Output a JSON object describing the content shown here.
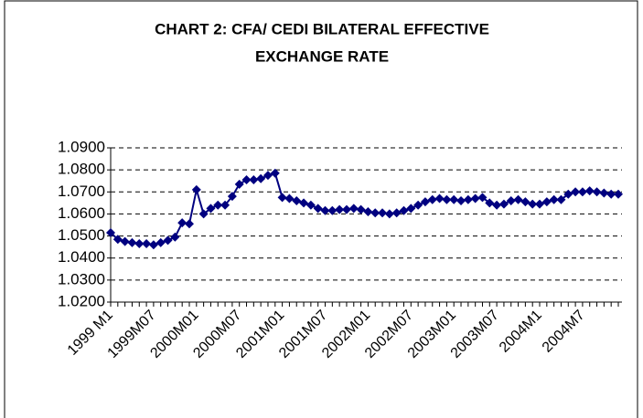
{
  "chart_data": {
    "type": "line",
    "title": [
      "CHART 2: CFA/ CEDI BILATERAL EFFECTIVE",
      "EXCHANGE RATE"
    ],
    "categories": [
      "1999 M1",
      null,
      null,
      null,
      null,
      null,
      "1999M07",
      null,
      null,
      null,
      null,
      null,
      "2000M01",
      null,
      null,
      null,
      null,
      null,
      "2000M07",
      null,
      null,
      null,
      null,
      null,
      "2001M01",
      null,
      null,
      null,
      null,
      null,
      "2001M07",
      null,
      null,
      null,
      null,
      null,
      "2002M01",
      null,
      null,
      null,
      null,
      null,
      "2002M07",
      null,
      null,
      null,
      null,
      null,
      "2003M01",
      null,
      null,
      null,
      null,
      null,
      "2003M07",
      null,
      null,
      null,
      null,
      null,
      "2004M1",
      null,
      null,
      null,
      null,
      null,
      "2004M7",
      null,
      null,
      null,
      null,
      null
    ],
    "values": [
      1.0515,
      1.0485,
      1.0475,
      1.047,
      1.0465,
      1.0465,
      1.046,
      1.047,
      1.048,
      1.0495,
      1.056,
      1.0555,
      1.071,
      1.06,
      1.0625,
      1.064,
      1.064,
      1.068,
      1.0735,
      1.0755,
      1.0755,
      1.076,
      1.0775,
      1.0785,
      1.0675,
      1.067,
      1.066,
      1.065,
      1.064,
      1.0625,
      1.0615,
      1.0615,
      1.062,
      1.062,
      1.0625,
      1.062,
      1.061,
      1.0605,
      1.0605,
      1.06,
      1.0605,
      1.0615,
      1.0625,
      1.064,
      1.0655,
      1.0665,
      1.067,
      1.0665,
      1.0665,
      1.066,
      1.0665,
      1.067,
      1.0675,
      1.065,
      1.064,
      1.0645,
      1.066,
      1.0665,
      1.0655,
      1.0645,
      1.0645,
      1.0655,
      1.0665,
      1.0665,
      1.069,
      1.07,
      1.07,
      1.0705,
      1.07,
      1.0695,
      1.069,
      1.069
    ],
    "color": "#000080",
    "ylim": [
      1.02,
      1.09
    ],
    "yticks": [
      {
        "value": 1.02,
        "label": "1.0200"
      },
      {
        "value": 1.03,
        "label": "1.0300"
      },
      {
        "value": 1.04,
        "label": "1.0400"
      },
      {
        "value": 1.05,
        "label": "1.0500"
      },
      {
        "value": 1.06,
        "label": "1.0600"
      },
      {
        "value": 1.07,
        "label": "1.0700"
      },
      {
        "value": 1.08,
        "label": "1.0800"
      },
      {
        "value": 1.09,
        "label": "1.0900"
      }
    ],
    "grid": true
  }
}
